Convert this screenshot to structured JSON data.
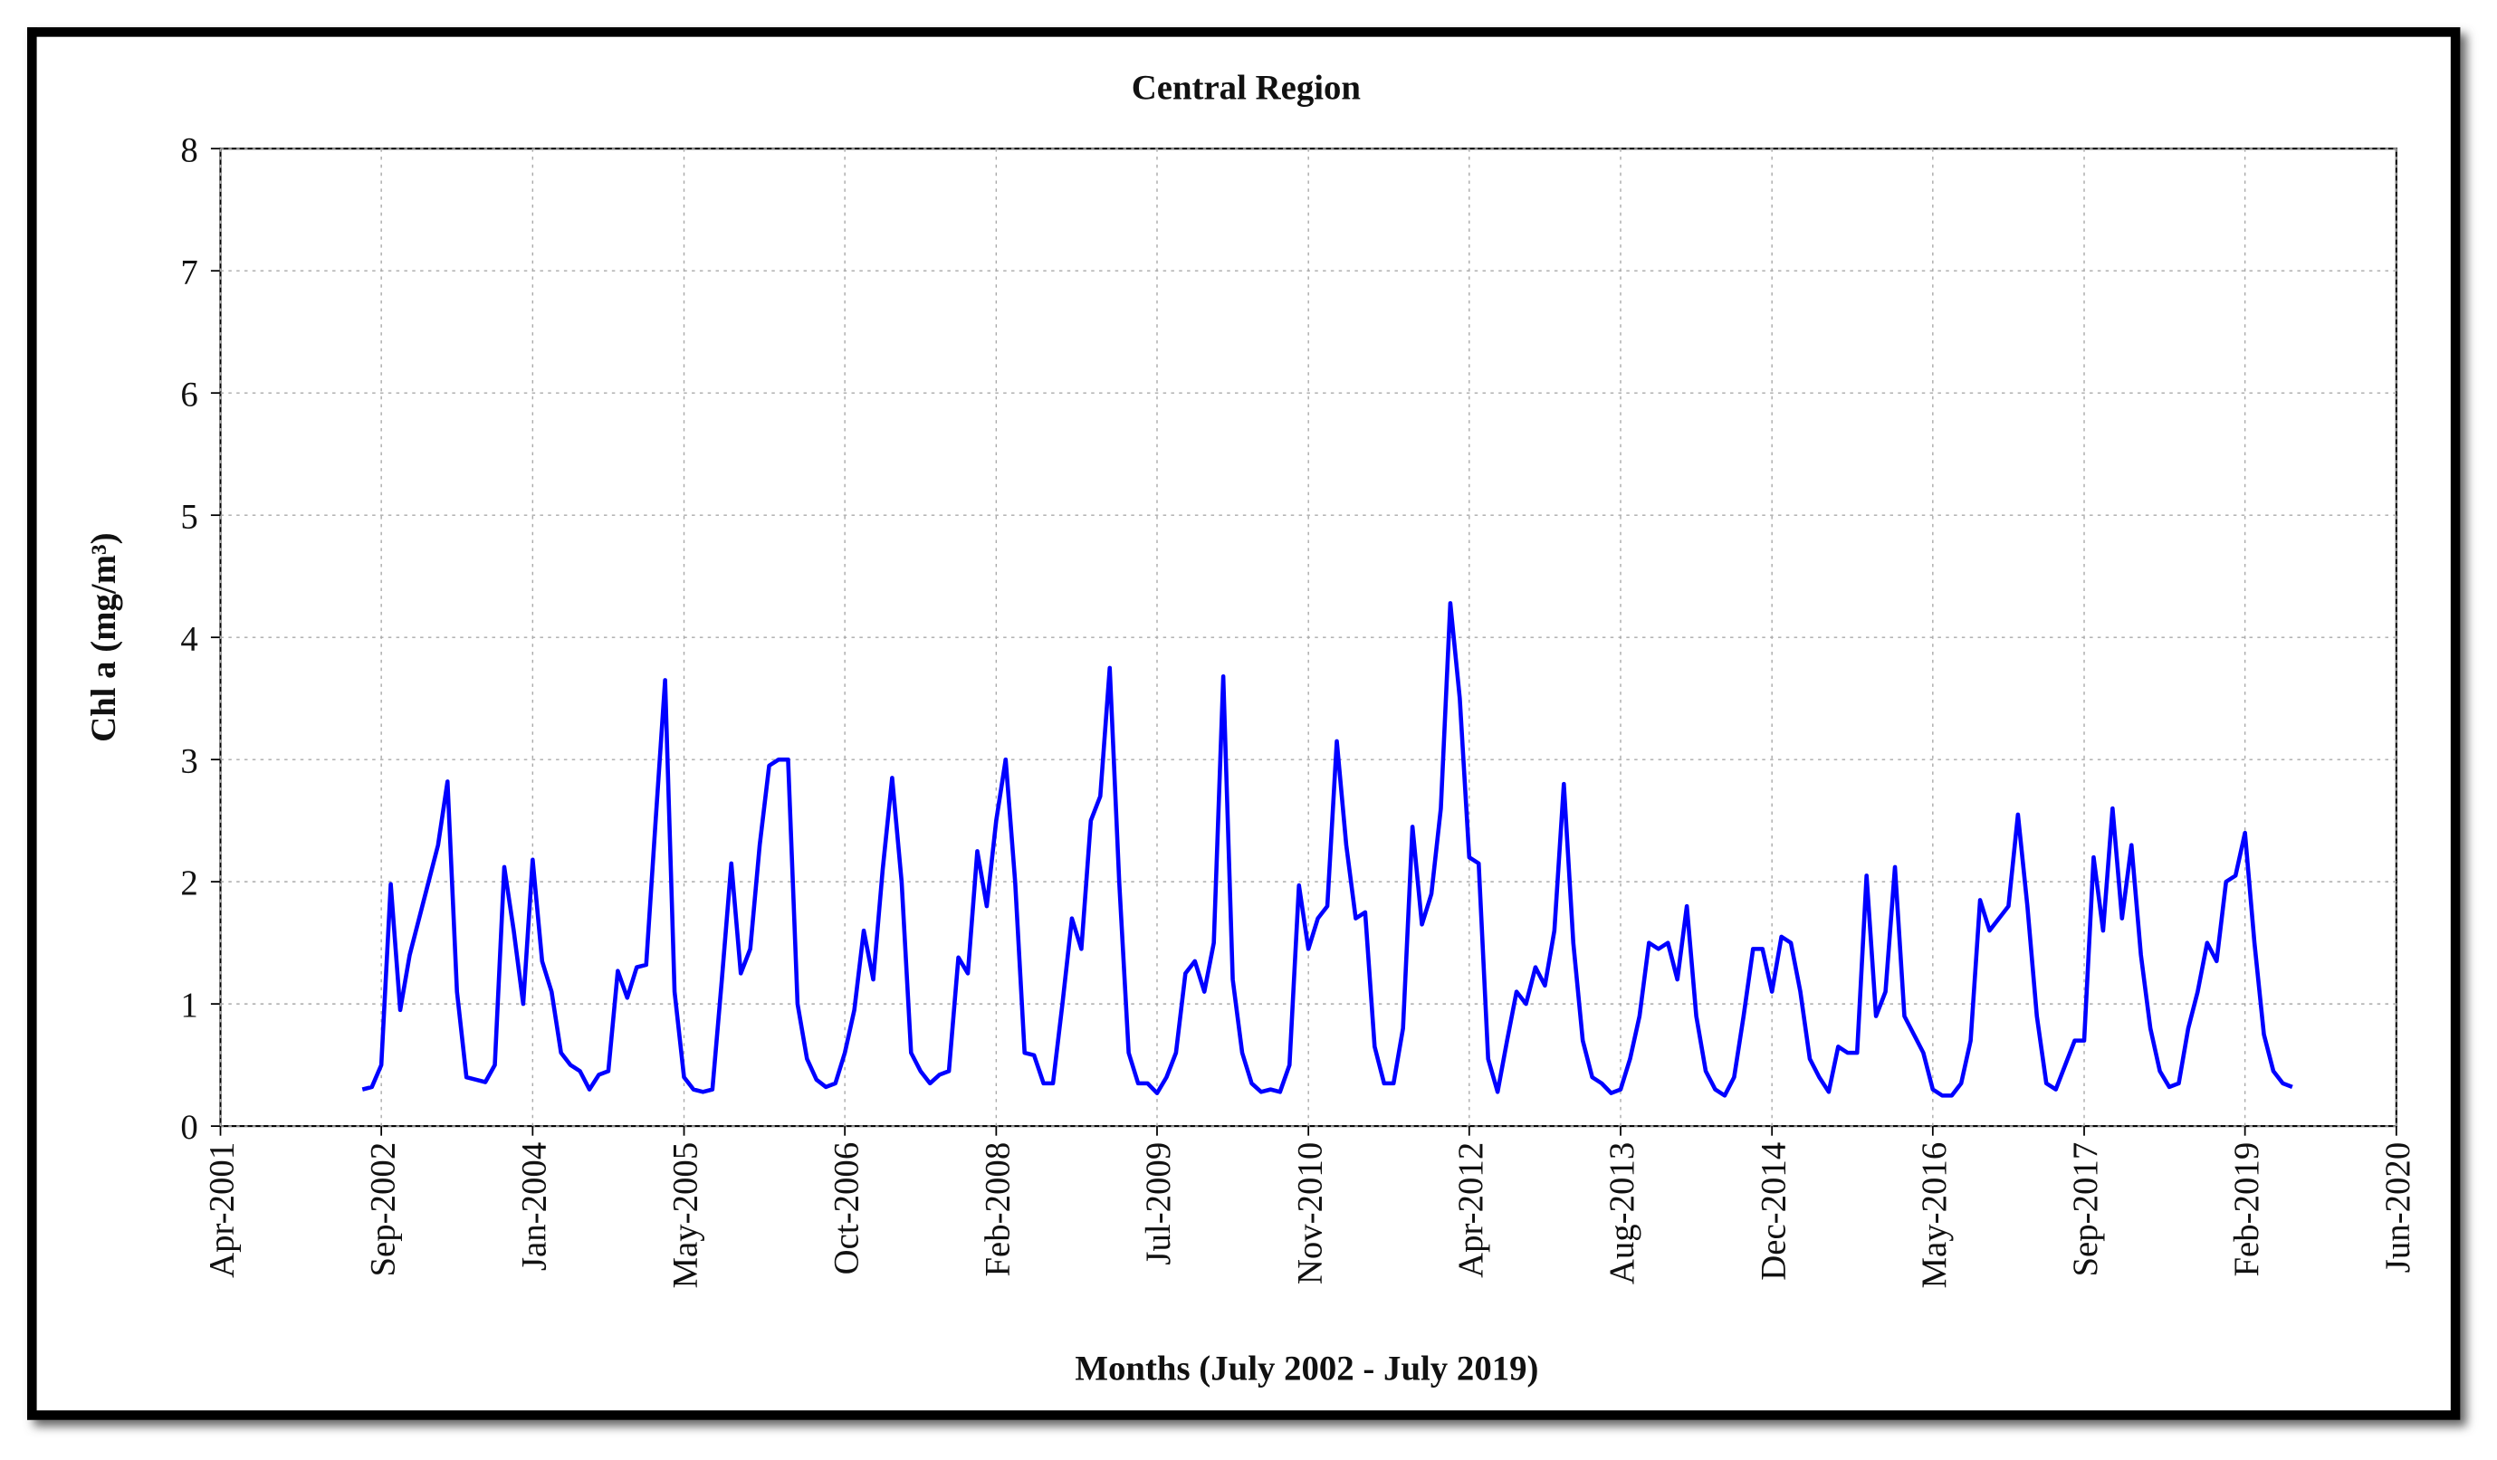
{
  "chart_data": {
    "type": "line",
    "title": "Central Region",
    "xlabel": "Months (July 2002 - July 2019)",
    "ylabel": "Chl a (mg/m³)",
    "x": [
      "2002-07",
      "2002-08",
      "2002-09",
      "2002-10",
      "2002-11",
      "2002-12",
      "2003-01",
      "2003-02",
      "2003-03",
      "2003-04",
      "2003-05",
      "2003-06",
      "2003-07",
      "2003-08",
      "2003-09",
      "2003-10",
      "2003-11",
      "2003-12",
      "2004-01",
      "2004-02",
      "2004-03",
      "2004-04",
      "2004-05",
      "2004-06",
      "2004-07",
      "2004-08",
      "2004-09",
      "2004-10",
      "2004-11",
      "2004-12",
      "2005-01",
      "2005-02",
      "2005-03",
      "2005-04",
      "2005-05",
      "2005-06",
      "2005-07",
      "2005-08",
      "2005-09",
      "2005-10",
      "2005-11",
      "2005-12",
      "2006-01",
      "2006-02",
      "2006-03",
      "2006-04",
      "2006-05",
      "2006-06",
      "2006-07",
      "2006-08",
      "2006-09",
      "2006-10",
      "2006-11",
      "2006-12",
      "2007-01",
      "2007-02",
      "2007-03",
      "2007-04",
      "2007-05",
      "2007-06",
      "2007-07",
      "2007-08",
      "2007-09",
      "2007-10",
      "2007-11",
      "2007-12",
      "2008-01",
      "2008-02",
      "2008-03",
      "2008-04",
      "2008-05",
      "2008-06",
      "2008-07",
      "2008-08",
      "2008-09",
      "2008-10",
      "2008-11",
      "2008-12",
      "2009-01",
      "2009-02",
      "2009-03",
      "2009-04",
      "2009-05",
      "2009-06",
      "2009-07",
      "2009-08",
      "2009-09",
      "2009-10",
      "2009-11",
      "2009-12",
      "2010-01",
      "2010-02",
      "2010-03",
      "2010-04",
      "2010-05",
      "2010-06",
      "2010-07",
      "2010-08",
      "2010-09",
      "2010-10",
      "2010-11",
      "2010-12",
      "2011-01",
      "2011-02",
      "2011-03",
      "2011-04",
      "2011-05",
      "2011-06",
      "2011-07",
      "2011-08",
      "2011-09",
      "2011-10",
      "2011-11",
      "2011-12",
      "2012-01",
      "2012-02",
      "2012-03",
      "2012-04",
      "2012-05",
      "2012-06",
      "2012-07",
      "2012-08",
      "2012-09",
      "2012-10",
      "2012-11",
      "2012-12",
      "2013-01",
      "2013-02",
      "2013-03",
      "2013-04",
      "2013-05",
      "2013-06",
      "2013-07",
      "2013-08",
      "2013-09",
      "2013-10",
      "2013-11",
      "2013-12",
      "2014-01",
      "2014-02",
      "2014-03",
      "2014-04",
      "2014-05",
      "2014-06",
      "2014-07",
      "2014-08",
      "2014-09",
      "2014-10",
      "2014-11",
      "2014-12",
      "2015-01",
      "2015-02",
      "2015-03",
      "2015-04",
      "2015-05",
      "2015-06",
      "2015-07",
      "2015-08",
      "2015-09",
      "2015-10",
      "2015-11",
      "2015-12",
      "2016-01",
      "2016-02",
      "2016-03",
      "2016-04",
      "2016-05",
      "2016-06",
      "2016-07",
      "2016-08",
      "2016-09",
      "2016-10",
      "2016-11",
      "2016-12",
      "2017-01",
      "2017-02",
      "2017-03",
      "2017-04",
      "2017-05",
      "2017-06",
      "2017-07",
      "2017-08",
      "2017-09",
      "2017-10",
      "2017-11",
      "2017-12",
      "2018-01",
      "2018-02",
      "2018-03",
      "2018-04",
      "2018-05",
      "2018-06",
      "2018-07",
      "2018-08",
      "2018-09",
      "2018-10",
      "2018-11",
      "2018-12",
      "2019-01",
      "2019-02",
      "2019-03",
      "2019-04",
      "2019-05",
      "2019-06",
      "2019-07"
    ],
    "series": [
      {
        "color": "#0000ff",
        "values": [
          0.3,
          0.32,
          0.5,
          1.98,
          0.95,
          1.4,
          1.7,
          2.0,
          2.3,
          2.82,
          1.1,
          0.4,
          0.38,
          0.36,
          0.5,
          2.12,
          1.6,
          1.0,
          2.18,
          1.35,
          1.1,
          0.6,
          0.5,
          0.45,
          0.3,
          0.42,
          0.45,
          1.27,
          1.05,
          1.3,
          1.32,
          2.5,
          3.65,
          1.1,
          0.4,
          0.3,
          0.28,
          0.3,
          1.2,
          2.15,
          1.25,
          1.45,
          2.3,
          2.95,
          3.0,
          3.0,
          1.0,
          0.55,
          0.38,
          0.32,
          0.35,
          0.6,
          0.95,
          1.6,
          1.2,
          2.1,
          2.85,
          2.0,
          0.6,
          0.45,
          0.35,
          0.42,
          0.45,
          1.38,
          1.25,
          2.25,
          1.8,
          2.5,
          3.0,
          2.0,
          0.6,
          0.58,
          0.35,
          0.35,
          1.0,
          1.7,
          1.45,
          2.5,
          2.7,
          3.75,
          2.0,
          0.6,
          0.35,
          0.35,
          0.27,
          0.4,
          0.6,
          1.25,
          1.35,
          1.1,
          1.5,
          3.68,
          1.2,
          0.6,
          0.35,
          0.28,
          0.3,
          0.28,
          0.5,
          1.97,
          1.45,
          1.7,
          1.8,
          3.15,
          2.3,
          1.7,
          1.75,
          0.65,
          0.35,
          0.35,
          0.8,
          2.45,
          1.65,
          1.9,
          2.6,
          4.28,
          3.5,
          2.2,
          2.15,
          0.55,
          0.28,
          0.7,
          1.1,
          1.0,
          1.3,
          1.15,
          1.6,
          2.8,
          1.5,
          0.7,
          0.4,
          0.35,
          0.27,
          0.3,
          0.55,
          0.9,
          1.5,
          1.45,
          1.5,
          1.2,
          1.8,
          0.9,
          0.45,
          0.3,
          0.25,
          0.4,
          0.9,
          1.45,
          1.45,
          1.1,
          1.55,
          1.5,
          1.1,
          0.55,
          0.4,
          0.28,
          0.65,
          0.6,
          0.6,
          2.05,
          0.9,
          1.1,
          2.12,
          0.9,
          0.75,
          0.6,
          0.3,
          0.25,
          0.25,
          0.35,
          0.7,
          1.85,
          1.6,
          1.7,
          1.8,
          2.55,
          1.8,
          0.9,
          0.35,
          0.3,
          0.5,
          0.7,
          0.7,
          2.2,
          1.6,
          2.6,
          1.7,
          2.3,
          1.4,
          0.8,
          0.45,
          0.32,
          0.35,
          0.8,
          1.1,
          1.5,
          1.35,
          2.0,
          2.05,
          2.4,
          1.5,
          0.75,
          0.45,
          0.35,
          0.32
        ]
      }
    ],
    "xlim": [
      "2001-04",
      "2020-06"
    ],
    "xticks": [
      {
        "value": "2001-04",
        "label": "Apr-2001"
      },
      {
        "value": "2002-09",
        "label": "Sep-2002"
      },
      {
        "value": "2004-01",
        "label": "Jan-2004"
      },
      {
        "value": "2005-05",
        "label": "May-2005"
      },
      {
        "value": "2006-10",
        "label": "Oct-2006"
      },
      {
        "value": "2008-02",
        "label": "Feb-2008"
      },
      {
        "value": "2009-07",
        "label": "Jul-2009"
      },
      {
        "value": "2010-11",
        "label": "Nov-2010"
      },
      {
        "value": "2012-04",
        "label": "Apr-2012"
      },
      {
        "value": "2013-08",
        "label": "Aug-2013"
      },
      {
        "value": "2014-12",
        "label": "Dec-2014"
      },
      {
        "value": "2016-05",
        "label": "May-2016"
      },
      {
        "value": "2017-09",
        "label": "Sep-2017"
      },
      {
        "value": "2019-02",
        "label": "Feb-2019"
      },
      {
        "value": "2020-06",
        "label": "Jun-2020"
      }
    ],
    "ylim": [
      0,
      8
    ],
    "yticks": [
      0,
      1,
      2,
      3,
      4,
      5,
      6,
      7,
      8
    ],
    "grid": true
  }
}
